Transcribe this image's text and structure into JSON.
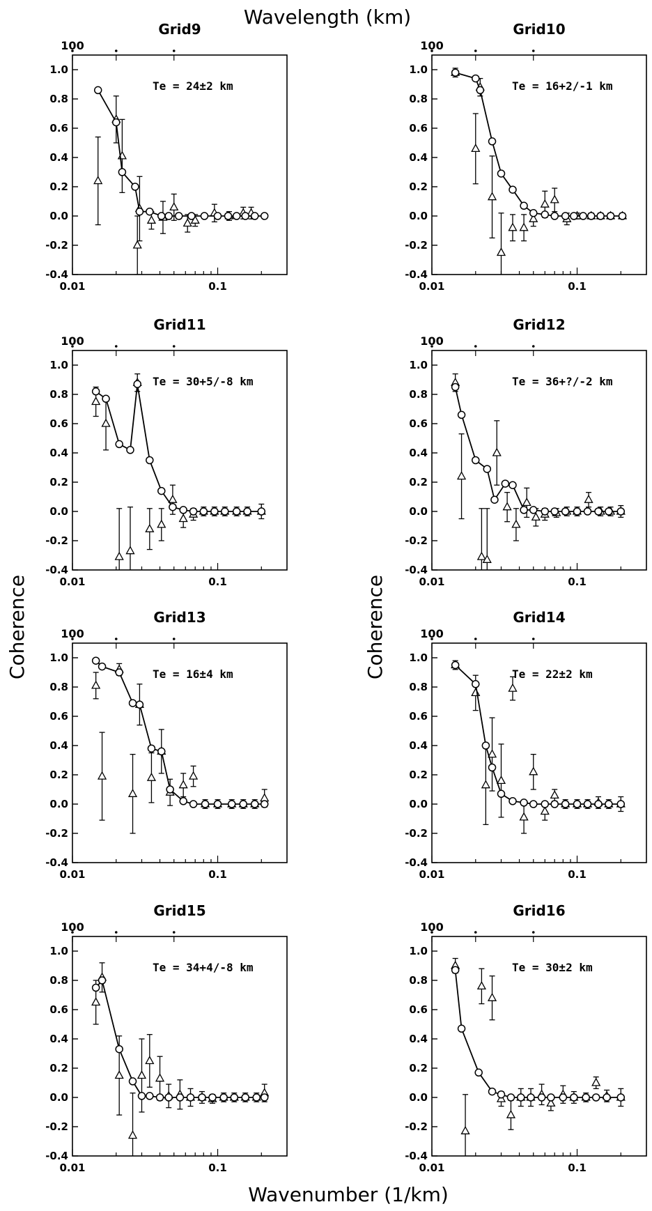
{
  "figure": {
    "top_label": "Wavelength (km)",
    "bottom_label": "Wavenumber (1/km)",
    "left_label": "Coherence",
    "right_label": "Coherence",
    "x_tick_labels": [
      "0.01",
      "0.1"
    ],
    "top_tick_label": "100",
    "y_tick_labels": [
      "1.0",
      "0.8",
      "0.6",
      "0.4",
      "0.2",
      "0.0",
      "-0.2",
      "-0.4"
    ]
  },
  "chart_data": [
    {
      "type": "line",
      "title": "Grid9",
      "annotation": "Te = 24±2 km",
      "x_scale": "log",
      "xlim": [
        0.01,
        0.3
      ],
      "ylim": [
        -0.4,
        1.1
      ],
      "series": [
        {
          "marker": "circle",
          "x": [
            0.015,
            0.02,
            0.022,
            0.027,
            0.029,
            0.034,
            0.041,
            0.046,
            0.054,
            0.066,
            0.081,
            0.1,
            0.118,
            0.135,
            0.155,
            0.18,
            0.21
          ],
          "y": [
            0.86,
            0.64,
            0.3,
            0.2,
            0.03,
            0.03,
            0.0,
            0.0,
            0.0,
            0.0,
            0.0,
            0.0,
            0.0,
            0.0,
            0.0,
            0.0,
            0.0
          ]
        },
        {
          "marker": "triangle",
          "x": [
            0.015,
            0.02,
            0.022,
            0.028,
            0.029,
            0.035,
            0.042,
            0.05,
            0.062,
            0.07,
            0.095,
            0.12,
            0.15,
            0.17
          ],
          "y": [
            0.24,
            0.66,
            0.41,
            -0.2,
            0.05,
            -0.03,
            -0.01,
            0.06,
            -0.05,
            -0.03,
            0.02,
            0.0,
            0.02,
            0.02
          ],
          "err": [
            0.3,
            0.16,
            0.25,
            0.2,
            0.22,
            0.06,
            0.11,
            0.09,
            0.06,
            0.04,
            0.06,
            0.03,
            0.04,
            0.04
          ]
        }
      ]
    },
    {
      "type": "line",
      "title": "Grid10",
      "annotation": "Te = 16+2/-1 km",
      "x_scale": "log",
      "xlim": [
        0.01,
        0.3
      ],
      "ylim": [
        -0.4,
        1.1
      ],
      "series": [
        {
          "marker": "circle",
          "x": [
            0.0145,
            0.02,
            0.0215,
            0.026,
            0.03,
            0.036,
            0.043,
            0.05,
            0.06,
            0.07,
            0.083,
            0.095,
            0.11,
            0.125,
            0.145,
            0.17,
            0.205
          ],
          "y": [
            0.98,
            0.94,
            0.86,
            0.51,
            0.29,
            0.18,
            0.07,
            0.02,
            0.01,
            0.0,
            0.0,
            0.0,
            0.0,
            0.0,
            0.0,
            0.0,
            0.0
          ]
        },
        {
          "marker": "triangle",
          "x": [
            0.0145,
            0.02,
            0.0215,
            0.026,
            0.03,
            0.036,
            0.043,
            0.05,
            0.06,
            0.07,
            0.085,
            0.1,
            0.125,
            0.145,
            0.17,
            0.205
          ],
          "y": [
            0.98,
            0.46,
            0.88,
            0.13,
            -0.25,
            -0.08,
            -0.08,
            -0.02,
            0.08,
            0.11,
            -0.02,
            0.0,
            0.0,
            0.0,
            0.0,
            0.0
          ],
          "err": [
            0.03,
            0.24,
            0.06,
            0.28,
            0.27,
            0.09,
            0.09,
            0.05,
            0.09,
            0.08,
            0.04,
            0.02,
            0.02,
            0.02,
            0.02,
            0.02
          ]
        }
      ]
    },
    {
      "type": "line",
      "title": "Grid11",
      "annotation": "Te = 30+5/-8 km",
      "x_scale": "log",
      "xlim": [
        0.01,
        0.3
      ],
      "ylim": [
        -0.4,
        1.1
      ],
      "series": [
        {
          "marker": "circle",
          "x": [
            0.0145,
            0.017,
            0.021,
            0.025,
            0.028,
            0.034,
            0.041,
            0.049,
            0.058,
            0.068,
            0.08,
            0.095,
            0.112,
            0.135,
            0.16,
            0.2
          ],
          "y": [
            0.82,
            0.77,
            0.46,
            0.42,
            0.87,
            0.35,
            0.14,
            0.03,
            0.01,
            0.0,
            0.0,
            0.0,
            0.0,
            0.0,
            0.0,
            0.0
          ]
        },
        {
          "marker": "triangle",
          "x": [
            0.0145,
            0.017,
            0.021,
            0.025,
            0.028,
            0.034,
            0.041,
            0.049,
            0.058,
            0.068,
            0.08,
            0.095,
            0.112,
            0.135,
            0.16,
            0.2
          ],
          "y": [
            0.75,
            0.6,
            -0.31,
            -0.27,
            0.88,
            -0.12,
            -0.09,
            0.08,
            -0.05,
            -0.02,
            0.0,
            0.0,
            0.0,
            0.0,
            0.0,
            0.0
          ],
          "err": [
            0.1,
            0.18,
            0.33,
            0.3,
            0.06,
            0.14,
            0.11,
            0.1,
            0.06,
            0.04,
            0.03,
            0.03,
            0.03,
            0.03,
            0.03,
            0.05
          ]
        }
      ]
    },
    {
      "type": "line",
      "title": "Grid12",
      "annotation": "Te = 36+?/-2 km",
      "x_scale": "log",
      "xlim": [
        0.01,
        0.3
      ],
      "ylim": [
        -0.4,
        1.1
      ],
      "series": [
        {
          "marker": "circle",
          "x": [
            0.0145,
            0.016,
            0.02,
            0.024,
            0.027,
            0.032,
            0.036,
            0.043,
            0.05,
            0.06,
            0.07,
            0.083,
            0.1,
            0.118,
            0.14,
            0.165,
            0.2
          ],
          "y": [
            0.85,
            0.66,
            0.35,
            0.29,
            0.08,
            0.19,
            0.18,
            0.01,
            0.01,
            0.0,
            0.0,
            0.0,
            0.0,
            0.0,
            0.0,
            0.0,
            0.0
          ]
        },
        {
          "marker": "triangle",
          "x": [
            0.0145,
            0.016,
            0.022,
            0.024,
            0.028,
            0.033,
            0.038,
            0.045,
            0.052,
            0.06,
            0.072,
            0.085,
            0.1,
            0.12,
            0.145,
            0.17,
            0.2
          ],
          "y": [
            0.88,
            0.24,
            -0.31,
            -0.33,
            0.4,
            0.03,
            -0.09,
            0.06,
            -0.04,
            -0.02,
            -0.01,
            0.0,
            0.0,
            0.08,
            0.0,
            0.0,
            0.0
          ],
          "err": [
            0.06,
            0.29,
            0.33,
            0.35,
            0.22,
            0.1,
            0.11,
            0.1,
            0.06,
            0.04,
            0.03,
            0.03,
            0.03,
            0.05,
            0.03,
            0.03,
            0.04
          ]
        }
      ]
    },
    {
      "type": "line",
      "title": "Grid13",
      "annotation": "Te = 16±4 km",
      "x_scale": "log",
      "xlim": [
        0.01,
        0.3
      ],
      "ylim": [
        -0.4,
        1.1
      ],
      "series": [
        {
          "marker": "circle",
          "x": [
            0.0145,
            0.016,
            0.021,
            0.026,
            0.029,
            0.035,
            0.041,
            0.047,
            0.058,
            0.068,
            0.082,
            0.1,
            0.125,
            0.15,
            0.18,
            0.21
          ],
          "y": [
            0.98,
            0.94,
            0.9,
            0.69,
            0.68,
            0.38,
            0.36,
            0.1,
            0.02,
            0.0,
            0.0,
            0.0,
            0.0,
            0.0,
            0.0,
            0.0
          ]
        },
        {
          "marker": "triangle",
          "x": [
            0.0145,
            0.016,
            0.021,
            0.026,
            0.029,
            0.035,
            0.041,
            0.047,
            0.058,
            0.068,
            0.082,
            0.1,
            0.125,
            0.15,
            0.18,
            0.21
          ],
          "y": [
            0.81,
            0.19,
            0.92,
            0.07,
            0.68,
            0.18,
            0.36,
            0.08,
            0.13,
            0.19,
            0.0,
            0.0,
            0.0,
            0.0,
            0.0,
            0.04
          ],
          "err": [
            0.09,
            0.3,
            0.04,
            0.27,
            0.14,
            0.17,
            0.15,
            0.09,
            0.08,
            0.07,
            0.03,
            0.03,
            0.03,
            0.03,
            0.03,
            0.06
          ]
        }
      ]
    },
    {
      "type": "line",
      "title": "Grid14",
      "annotation": "Te = 22±2 km",
      "x_scale": "log",
      "xlim": [
        0.01,
        0.3
      ],
      "ylim": [
        -0.4,
        1.1
      ],
      "series": [
        {
          "marker": "circle",
          "x": [
            0.0145,
            0.02,
            0.0235,
            0.026,
            0.03,
            0.036,
            0.043,
            0.05,
            0.06,
            0.07,
            0.083,
            0.1,
            0.118,
            0.14,
            0.165,
            0.2
          ],
          "y": [
            0.95,
            0.82,
            0.4,
            0.25,
            0.07,
            0.02,
            0.01,
            0.0,
            0.0,
            0.0,
            0.0,
            0.0,
            0.0,
            0.0,
            0.0,
            0.0
          ]
        },
        {
          "marker": "triangle",
          "x": [
            0.0145,
            0.02,
            0.0235,
            0.026,
            0.03,
            0.036,
            0.043,
            0.05,
            0.06,
            0.07,
            0.083,
            0.1,
            0.118,
            0.14,
            0.165,
            0.2
          ],
          "y": [
            0.95,
            0.76,
            0.13,
            0.34,
            0.16,
            0.79,
            -0.09,
            0.22,
            -0.05,
            0.06,
            0.0,
            0.0,
            0.0,
            0.01,
            0.0,
            0.0
          ],
          "err": [
            0.03,
            0.12,
            0.27,
            0.25,
            0.25,
            0.08,
            0.11,
            0.12,
            0.06,
            0.04,
            0.03,
            0.03,
            0.03,
            0.04,
            0.03,
            0.05
          ]
        }
      ]
    },
    {
      "type": "line",
      "title": "Grid15",
      "annotation": "Te = 34+4/-8 km",
      "x_scale": "log",
      "xlim": [
        0.01,
        0.3
      ],
      "ylim": [
        -0.4,
        1.1
      ],
      "series": [
        {
          "marker": "circle",
          "x": [
            0.0145,
            0.016,
            0.021,
            0.026,
            0.03,
            0.034,
            0.04,
            0.046,
            0.055,
            0.065,
            0.078,
            0.092,
            0.11,
            0.13,
            0.155,
            0.185,
            0.21
          ],
          "y": [
            0.75,
            0.8,
            0.33,
            0.11,
            0.01,
            0.01,
            0.0,
            0.0,
            0.0,
            0.0,
            0.0,
            0.0,
            0.0,
            0.0,
            0.0,
            0.0,
            0.0
          ]
        },
        {
          "marker": "triangle",
          "x": [
            0.0145,
            0.016,
            0.021,
            0.026,
            0.03,
            0.034,
            0.04,
            0.046,
            0.055,
            0.065,
            0.078,
            0.092,
            0.11,
            0.13,
            0.155,
            0.185,
            0.21
          ],
          "y": [
            0.65,
            0.82,
            0.15,
            -0.26,
            0.15,
            0.25,
            0.13,
            0.01,
            0.02,
            0.0,
            0.0,
            -0.01,
            0.0,
            0.0,
            0.0,
            0.0,
            0.03
          ],
          "err": [
            0.15,
            0.1,
            0.27,
            0.29,
            0.25,
            0.18,
            0.15,
            0.08,
            0.1,
            0.06,
            0.04,
            0.03,
            0.03,
            0.03,
            0.03,
            0.03,
            0.06
          ]
        }
      ]
    },
    {
      "type": "line",
      "title": "Grid16",
      "annotation": "Te = 30±2 km",
      "x_scale": "log",
      "xlim": [
        0.01,
        0.3
      ],
      "ylim": [
        -0.4,
        1.1
      ],
      "series": [
        {
          "marker": "circle",
          "x": [
            0.0145,
            0.016,
            0.021,
            0.026,
            0.03,
            0.035,
            0.041,
            0.048,
            0.057,
            0.066,
            0.08,
            0.095,
            0.115,
            0.135,
            0.16,
            0.2
          ],
          "y": [
            0.87,
            0.47,
            0.17,
            0.04,
            0.02,
            0.0,
            0.0,
            0.0,
            0.0,
            0.0,
            0.0,
            0.0,
            0.0,
            0.0,
            0.0,
            0.0
          ]
        },
        {
          "marker": "triangle",
          "x": [
            0.0145,
            0.017,
            0.022,
            0.026,
            0.03,
            0.035,
            0.041,
            0.048,
            0.057,
            0.066,
            0.08,
            0.095,
            0.115,
            0.135,
            0.16,
            0.2
          ],
          "y": [
            0.9,
            -0.23,
            0.76,
            0.68,
            -0.01,
            -0.12,
            0.0,
            0.0,
            0.02,
            -0.04,
            0.02,
            0.0,
            0.0,
            0.1,
            0.01,
            0.0
          ],
          "err": [
            0.05,
            0.25,
            0.12,
            0.15,
            0.05,
            0.1,
            0.06,
            0.06,
            0.07,
            0.05,
            0.06,
            0.04,
            0.03,
            0.04,
            0.04,
            0.06
          ]
        }
      ]
    }
  ]
}
